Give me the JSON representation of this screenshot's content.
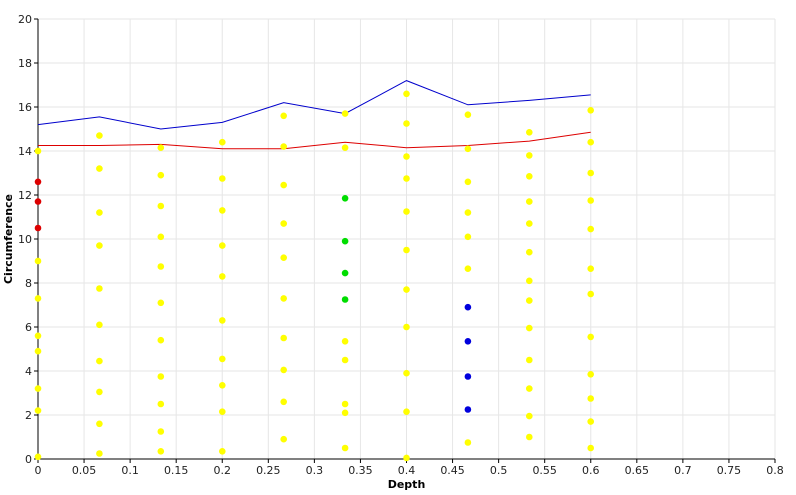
{
  "chart_data": {
    "type": "scatter",
    "xlabel": "Depth",
    "ylabel": "Circumference",
    "xlim": [
      0,
      0.8
    ],
    "ylim": [
      0,
      20
    ],
    "x_ticks": [
      "0",
      "0.05",
      "0.1",
      "0.15",
      "0.2",
      "0.25",
      "0.3",
      "0.35",
      "0.4",
      "0.45",
      "0.5",
      "0.55",
      "0.6",
      "0.65",
      "0.7",
      "0.75",
      "0.8"
    ],
    "x_tick_values": [
      0,
      0.05,
      0.1,
      0.15,
      0.2,
      0.25,
      0.3,
      0.35,
      0.4,
      0.45,
      0.5,
      0.55,
      0.6,
      0.65,
      0.7,
      0.75,
      0.8
    ],
    "y_ticks": [
      "0",
      "2",
      "4",
      "6",
      "8",
      "10",
      "12",
      "14",
      "16",
      "18",
      "20"
    ],
    "y_tick_values": [
      0,
      2,
      4,
      6,
      8,
      10,
      12,
      14,
      16,
      18,
      20
    ],
    "grid": true,
    "legend": "none",
    "colors": {
      "upper_line": "#0000cc",
      "lower_line": "#dd0000",
      "yellow_points": "#ffff00",
      "red_points": "#dd0000",
      "green_points": "#00dd00",
      "blue_points": "#0000dd",
      "grid": "#e6e6e6",
      "axis": "#000000"
    },
    "lines": [
      {
        "color_key": "upper_line",
        "points": [
          [
            0,
            15.2
          ],
          [
            0.0667,
            15.55
          ],
          [
            0.1333,
            15.0
          ],
          [
            0.2,
            15.3
          ],
          [
            0.2667,
            16.2
          ],
          [
            0.3333,
            15.7
          ],
          [
            0.4,
            17.2
          ],
          [
            0.4667,
            16.1
          ],
          [
            0.5333,
            16.3
          ],
          [
            0.6,
            16.55
          ]
        ]
      },
      {
        "color_key": "lower_line",
        "points": [
          [
            0,
            14.25
          ],
          [
            0.0667,
            14.25
          ],
          [
            0.1333,
            14.3
          ],
          [
            0.2,
            14.1
          ],
          [
            0.2667,
            14.1
          ],
          [
            0.3333,
            14.4
          ],
          [
            0.4,
            14.15
          ],
          [
            0.4667,
            14.25
          ],
          [
            0.5333,
            14.45
          ],
          [
            0.6,
            14.85
          ]
        ]
      }
    ],
    "scatter": [
      {
        "color_key": "yellow_points",
        "points": [
          [
            0,
            14.0
          ],
          [
            0,
            9.0
          ],
          [
            0,
            7.3
          ],
          [
            0,
            5.6
          ],
          [
            0,
            4.9
          ],
          [
            0,
            3.2
          ],
          [
            0,
            2.2
          ],
          [
            0,
            0.1
          ],
          [
            0.0667,
            14.7
          ],
          [
            0.0667,
            13.2
          ],
          [
            0.0667,
            11.2
          ],
          [
            0.0667,
            9.7
          ],
          [
            0.0667,
            7.75
          ],
          [
            0.0667,
            6.1
          ],
          [
            0.0667,
            4.45
          ],
          [
            0.0667,
            3.05
          ],
          [
            0.0667,
            1.6
          ],
          [
            0.0667,
            0.25
          ],
          [
            0.1333,
            14.15
          ],
          [
            0.1333,
            12.9
          ],
          [
            0.1333,
            11.5
          ],
          [
            0.1333,
            10.1
          ],
          [
            0.1333,
            8.75
          ],
          [
            0.1333,
            7.1
          ],
          [
            0.1333,
            5.4
          ],
          [
            0.1333,
            3.75
          ],
          [
            0.1333,
            2.5
          ],
          [
            0.1333,
            1.25
          ],
          [
            0.1333,
            0.35
          ],
          [
            0.2,
            14.4
          ],
          [
            0.2,
            12.75
          ],
          [
            0.2,
            11.3
          ],
          [
            0.2,
            9.7
          ],
          [
            0.2,
            8.3
          ],
          [
            0.2,
            6.3
          ],
          [
            0.2,
            4.55
          ],
          [
            0.2,
            3.35
          ],
          [
            0.2,
            2.15
          ],
          [
            0.2,
            0.35
          ],
          [
            0.2667,
            15.6
          ],
          [
            0.2667,
            14.2
          ],
          [
            0.2667,
            12.45
          ],
          [
            0.2667,
            10.7
          ],
          [
            0.2667,
            9.15
          ],
          [
            0.2667,
            7.3
          ],
          [
            0.2667,
            5.5
          ],
          [
            0.2667,
            4.05
          ],
          [
            0.2667,
            2.6
          ],
          [
            0.2667,
            0.9
          ],
          [
            0.3333,
            15.7
          ],
          [
            0.3333,
            14.15
          ],
          [
            0.3333,
            5.35
          ],
          [
            0.3333,
            4.5
          ],
          [
            0.3333,
            2.5
          ],
          [
            0.3333,
            2.1
          ],
          [
            0.3333,
            0.5
          ],
          [
            0.4,
            16.6
          ],
          [
            0.4,
            15.25
          ],
          [
            0.4,
            13.75
          ],
          [
            0.4,
            12.75
          ],
          [
            0.4,
            11.25
          ],
          [
            0.4,
            9.5
          ],
          [
            0.4,
            7.7
          ],
          [
            0.4,
            6.0
          ],
          [
            0.4,
            3.9
          ],
          [
            0.4,
            2.15
          ],
          [
            0.4,
            0.05
          ],
          [
            0.4667,
            15.65
          ],
          [
            0.4667,
            14.1
          ],
          [
            0.4667,
            12.6
          ],
          [
            0.4667,
            11.2
          ],
          [
            0.4667,
            10.1
          ],
          [
            0.4667,
            8.65
          ],
          [
            0.4667,
            0.75
          ],
          [
            0.5333,
            14.85
          ],
          [
            0.5333,
            13.8
          ],
          [
            0.5333,
            12.85
          ],
          [
            0.5333,
            11.7
          ],
          [
            0.5333,
            10.7
          ],
          [
            0.5333,
            9.4
          ],
          [
            0.5333,
            8.1
          ],
          [
            0.5333,
            7.2
          ],
          [
            0.5333,
            5.95
          ],
          [
            0.5333,
            4.5
          ],
          [
            0.5333,
            3.2
          ],
          [
            0.5333,
            1.95
          ],
          [
            0.5333,
            1.0
          ],
          [
            0.6,
            15.85
          ],
          [
            0.6,
            14.4
          ],
          [
            0.6,
            13.0
          ],
          [
            0.6,
            11.75
          ],
          [
            0.6,
            10.45
          ],
          [
            0.6,
            8.65
          ],
          [
            0.6,
            7.5
          ],
          [
            0.6,
            5.55
          ],
          [
            0.6,
            3.85
          ],
          [
            0.6,
            2.75
          ],
          [
            0.6,
            1.7
          ],
          [
            0.6,
            0.5
          ]
        ]
      },
      {
        "color_key": "red_points",
        "points": [
          [
            0,
            12.6
          ],
          [
            0,
            11.7
          ],
          [
            0,
            10.5
          ]
        ]
      },
      {
        "color_key": "green_points",
        "points": [
          [
            0.3333,
            11.85
          ],
          [
            0.3333,
            9.9
          ],
          [
            0.3333,
            8.45
          ],
          [
            0.3333,
            7.25
          ]
        ]
      },
      {
        "color_key": "blue_points",
        "points": [
          [
            0.4667,
            6.9
          ],
          [
            0.4667,
            5.35
          ],
          [
            0.4667,
            3.75
          ],
          [
            0.4667,
            2.25
          ]
        ]
      }
    ]
  }
}
